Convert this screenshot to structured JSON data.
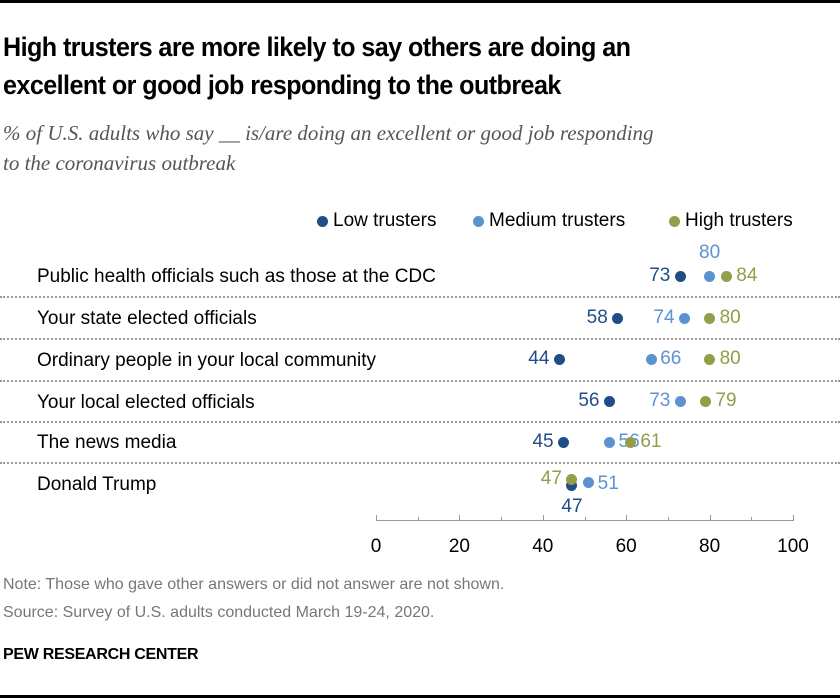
{
  "chart_data": {
    "type": "scatter",
    "title": "High trusters are more likely to say others are doing an excellent or good job responding to the outbreak",
    "title_lines": [
      "High trusters are more likely to say others are doing an",
      "excellent or good job responding to the outbreak"
    ],
    "subtitle_lines": [
      "% of U.S. adults who say __ is/are doing an excellent or good job responding",
      "to the coronavirus outbreak"
    ],
    "xlim": [
      0,
      100
    ],
    "xticks": [
      0,
      20,
      40,
      60,
      80,
      100
    ],
    "xtick_labels": [
      "0",
      "20",
      "40",
      "60",
      "80",
      "100"
    ],
    "legend_position": "top-right",
    "categories": [
      "Public health officials such as those at the CDC",
      "Your state elected officials",
      "Ordinary people in your local community",
      "Your local elected officials",
      "The news media",
      "Donald Trump"
    ],
    "series": [
      {
        "name": "Low trusters",
        "color": "#1f4e86",
        "values": [
          73,
          58,
          44,
          56,
          45,
          47
        ]
      },
      {
        "name": "Medium trusters",
        "color": "#5b93d0",
        "values": [
          80,
          74,
          66,
          73,
          56,
          51
        ]
      },
      {
        "name": "High trusters",
        "color": "#949d48",
        "values": [
          84,
          80,
          80,
          79,
          61,
          47
        ]
      }
    ]
  },
  "footer": {
    "note": "Note: Those who gave other answers or did not answer are not shown.",
    "source": "Source: Survey of U.S. adults conducted March 19-24, 2020.",
    "brand": "PEW RESEARCH CENTER"
  }
}
